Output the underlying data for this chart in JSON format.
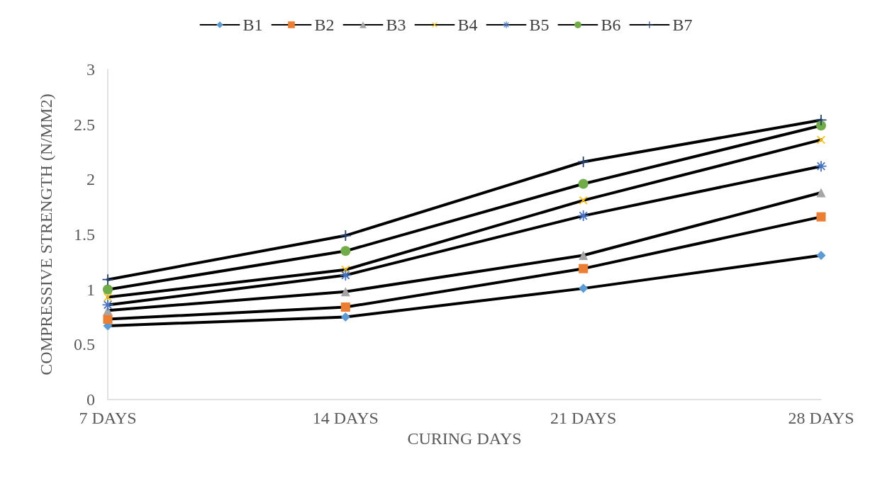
{
  "chart_data": {
    "type": "line",
    "xlabel": "CURING DAYS",
    "ylabel": "COMPRESSIVE STRENGTH (N/MM2)",
    "categories": [
      "7 DAYS",
      "14 DAYS",
      "21 DAYS",
      "28 DAYS"
    ],
    "ylim": [
      0,
      3
    ],
    "yticks": [
      0,
      0.5,
      1,
      1.5,
      2,
      2.5,
      3
    ],
    "grid": false,
    "legend": "top",
    "line_style": "solid",
    "series": [
      {
        "name": "B1",
        "color": "#5b9bd5",
        "marker": "diamond",
        "values": [
          0.67,
          0.75,
          1.01,
          1.31
        ]
      },
      {
        "name": "B2",
        "color": "#ed7d31",
        "marker": "square",
        "values": [
          0.73,
          0.84,
          1.19,
          1.66
        ]
      },
      {
        "name": "B3",
        "color": "#a5a5a5",
        "marker": "triangle",
        "values": [
          0.81,
          0.98,
          1.31,
          1.88
        ]
      },
      {
        "name": "B4",
        "color": "#ffc000",
        "marker": "x",
        "values": [
          0.93,
          1.18,
          1.81,
          2.36
        ]
      },
      {
        "name": "B5",
        "color": "#4472c4",
        "marker": "star",
        "values": [
          0.86,
          1.13,
          1.67,
          2.12
        ]
      },
      {
        "name": "B6",
        "color": "#70ad47",
        "marker": "circle",
        "values": [
          1.0,
          1.35,
          1.96,
          2.49
        ]
      },
      {
        "name": "B7",
        "color": "#264478",
        "marker": "cross",
        "values": [
          1.09,
          1.49,
          2.16,
          2.54
        ]
      }
    ]
  }
}
